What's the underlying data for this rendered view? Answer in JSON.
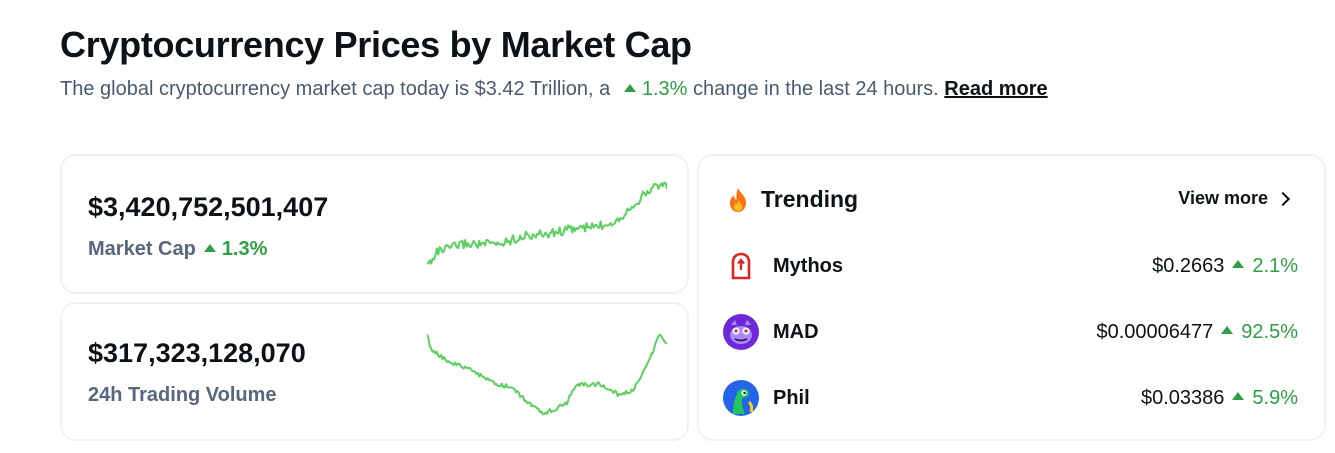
{
  "header": {
    "title": "Cryptocurrency Prices by Market Cap",
    "subtitle_prefix": "The global cryptocurrency market cap today is $3.42 Trillion, a",
    "subtitle_change": "1.3%",
    "subtitle_suffix": "change in the last 24 hours.",
    "read_more": "Read more"
  },
  "market_cap": {
    "value": "$3,420,752,501,407",
    "label": "Market Cap",
    "change": "1.3%"
  },
  "volume": {
    "value": "$317,323,128,070",
    "label": "24h Trading Volume"
  },
  "trending": {
    "title": "Trending",
    "view_more": "View more",
    "coins": [
      {
        "name": "Mythos",
        "price": "$0.2663",
        "change": "2.1%"
      },
      {
        "name": "MAD",
        "price": "$0.00006477",
        "change": "92.5%"
      },
      {
        "name": "Phil",
        "price": "$0.03386",
        "change": "5.9%"
      }
    ]
  },
  "colors": {
    "accent_green": "#2f9e44",
    "sparkline": "#5ccf5f",
    "muted": "#58667e"
  }
}
